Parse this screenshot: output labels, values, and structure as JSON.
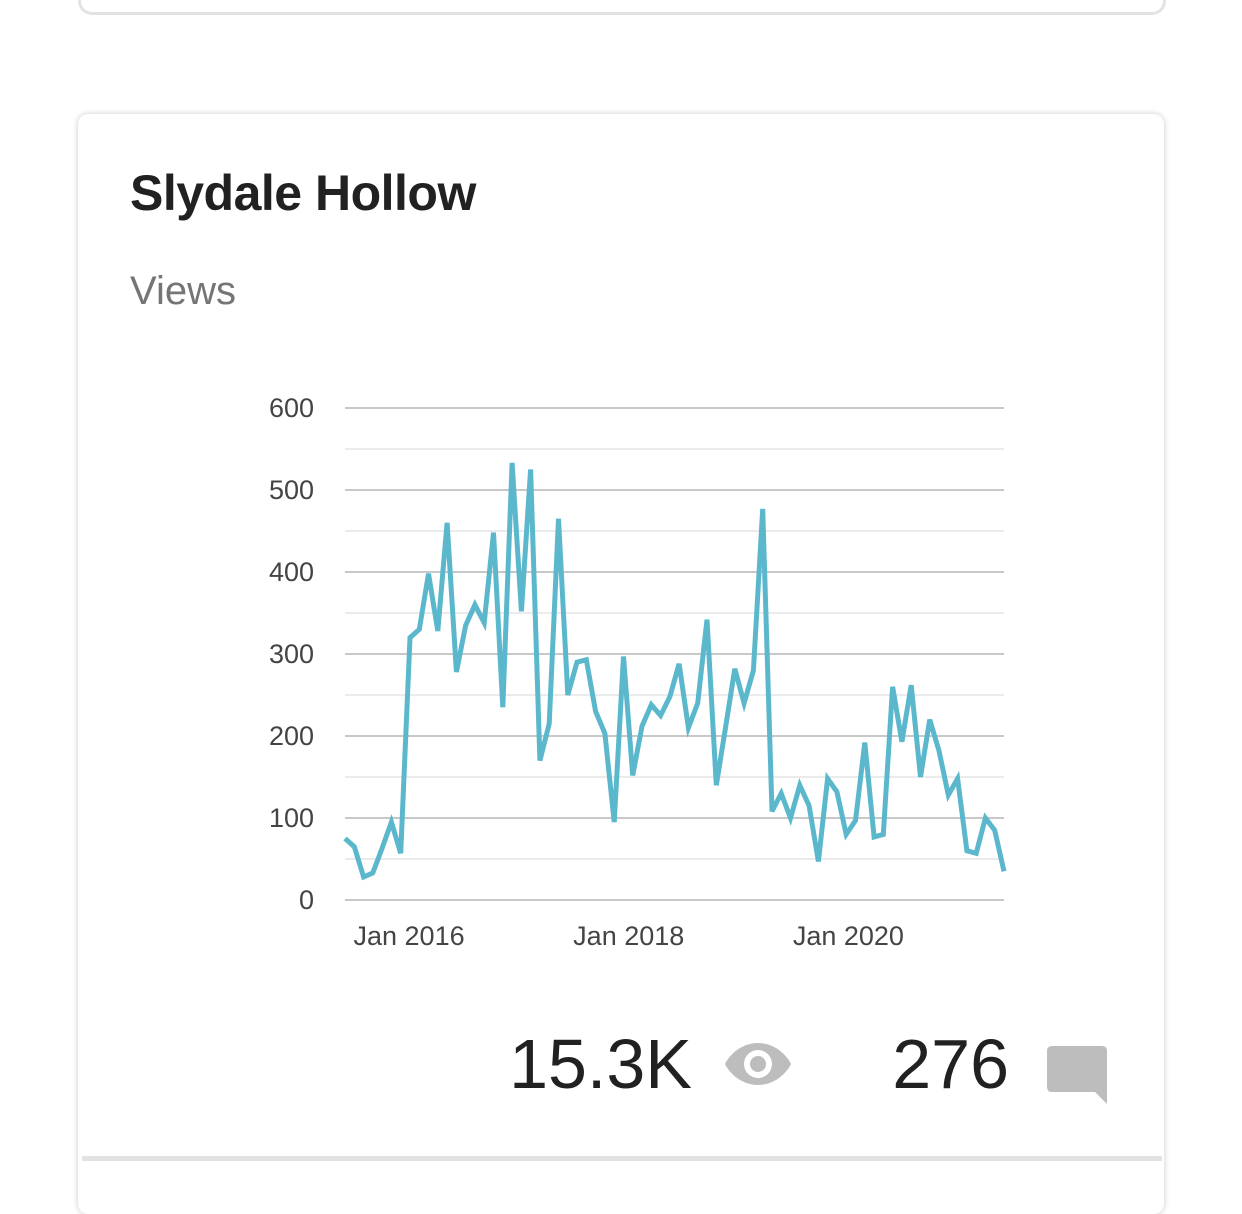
{
  "card": {
    "title": "Slydale Hollow",
    "subtitle": "Views"
  },
  "stats": {
    "views": "15.3K",
    "comments": "276",
    "views_icon": "eye-icon",
    "comments_icon": "comment-icon"
  },
  "colors": {
    "line": "#5bb8cc",
    "grid_major": "#c8c8c8",
    "grid_minor": "#ebebeb",
    "icon": "#bdbdbd"
  },
  "chart_data": {
    "type": "line",
    "ylim": [
      0,
      600
    ],
    "y_ticks": [
      0,
      100,
      200,
      300,
      400,
      500,
      600
    ],
    "y_tick_labels": [
      "0",
      "100",
      "200",
      "300",
      "400",
      "500",
      "600"
    ],
    "x_tick_labels": [
      "Jan 2016",
      "Jan 2018",
      "Jan 2020"
    ],
    "x_tick_positions": [
      "2016-01",
      "2018-01",
      "2020-01"
    ],
    "grid": true,
    "x_start": "2015-06",
    "x_end": "2021-06",
    "series": [
      {
        "values": [
          75,
          65,
          28,
          33,
          63,
          95,
          57,
          320,
          330,
          398,
          328,
          460,
          278,
          335,
          360,
          338,
          448,
          235,
          533,
          352,
          525,
          170,
          215,
          465,
          250,
          290,
          293,
          230,
          203,
          95,
          297,
          152,
          212,
          238,
          225,
          248,
          288,
          210,
          240,
          342,
          140,
          210,
          282,
          240,
          280,
          477,
          108,
          130,
          100,
          140,
          115,
          47,
          148,
          132,
          80,
          97,
          192,
          77,
          80,
          260,
          193,
          262,
          150,
          220,
          182,
          128,
          148,
          60,
          57,
          100,
          85,
          35
        ]
      }
    ]
  }
}
